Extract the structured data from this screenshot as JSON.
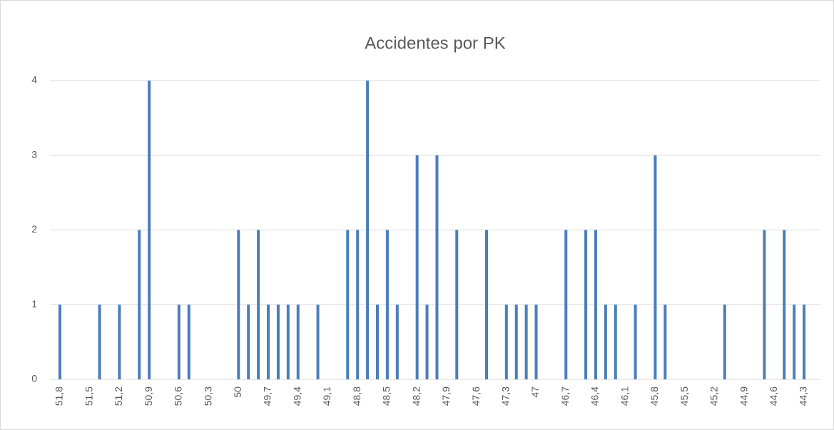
{
  "chart_data": {
    "type": "bar",
    "title": "Accidentes por PK",
    "categories": [
      "51,8",
      null,
      null,
      "51,5",
      null,
      null,
      "51,2",
      null,
      null,
      "50,9",
      null,
      null,
      "50,6",
      null,
      null,
      "50,3",
      null,
      null,
      "50",
      null,
      null,
      "49,7",
      null,
      null,
      "49,4",
      null,
      null,
      "49,1",
      null,
      null,
      "48,8",
      null,
      null,
      "48,5",
      null,
      null,
      "48,2",
      null,
      null,
      "47,9",
      null,
      null,
      "47,6",
      null,
      null,
      "47,3",
      null,
      null,
      "47",
      null,
      null,
      "46,7",
      null,
      null,
      "46,4",
      null,
      null,
      "46,1",
      null,
      null,
      "45,8",
      null,
      null,
      "45,5",
      null,
      null,
      "45,2",
      null,
      null,
      "44,9",
      null,
      null,
      "44,6",
      null,
      null,
      "44,3"
    ],
    "values": [
      1,
      0,
      0,
      0,
      1,
      0,
      1,
      0,
      2,
      4,
      0,
      0,
      1,
      1,
      0,
      0,
      0,
      0,
      2,
      1,
      2,
      1,
      1,
      1,
      1,
      0,
      1,
      0,
      0,
      2,
      2,
      4,
      1,
      2,
      1,
      0,
      3,
      1,
      3,
      0,
      2,
      0,
      0,
      2,
      0,
      1,
      1,
      1,
      1,
      0,
      0,
      2,
      0,
      2,
      2,
      1,
      1,
      0,
      1,
      0,
      3,
      1,
      0,
      0,
      0,
      0,
      0,
      1,
      0,
      0,
      0,
      2,
      0,
      2,
      1,
      1
    ],
    "color": "#4a7ebb",
    "ylim": [
      0,
      4
    ],
    "yticks": [
      0,
      1,
      2,
      3,
      4
    ],
    "grid": true
  }
}
